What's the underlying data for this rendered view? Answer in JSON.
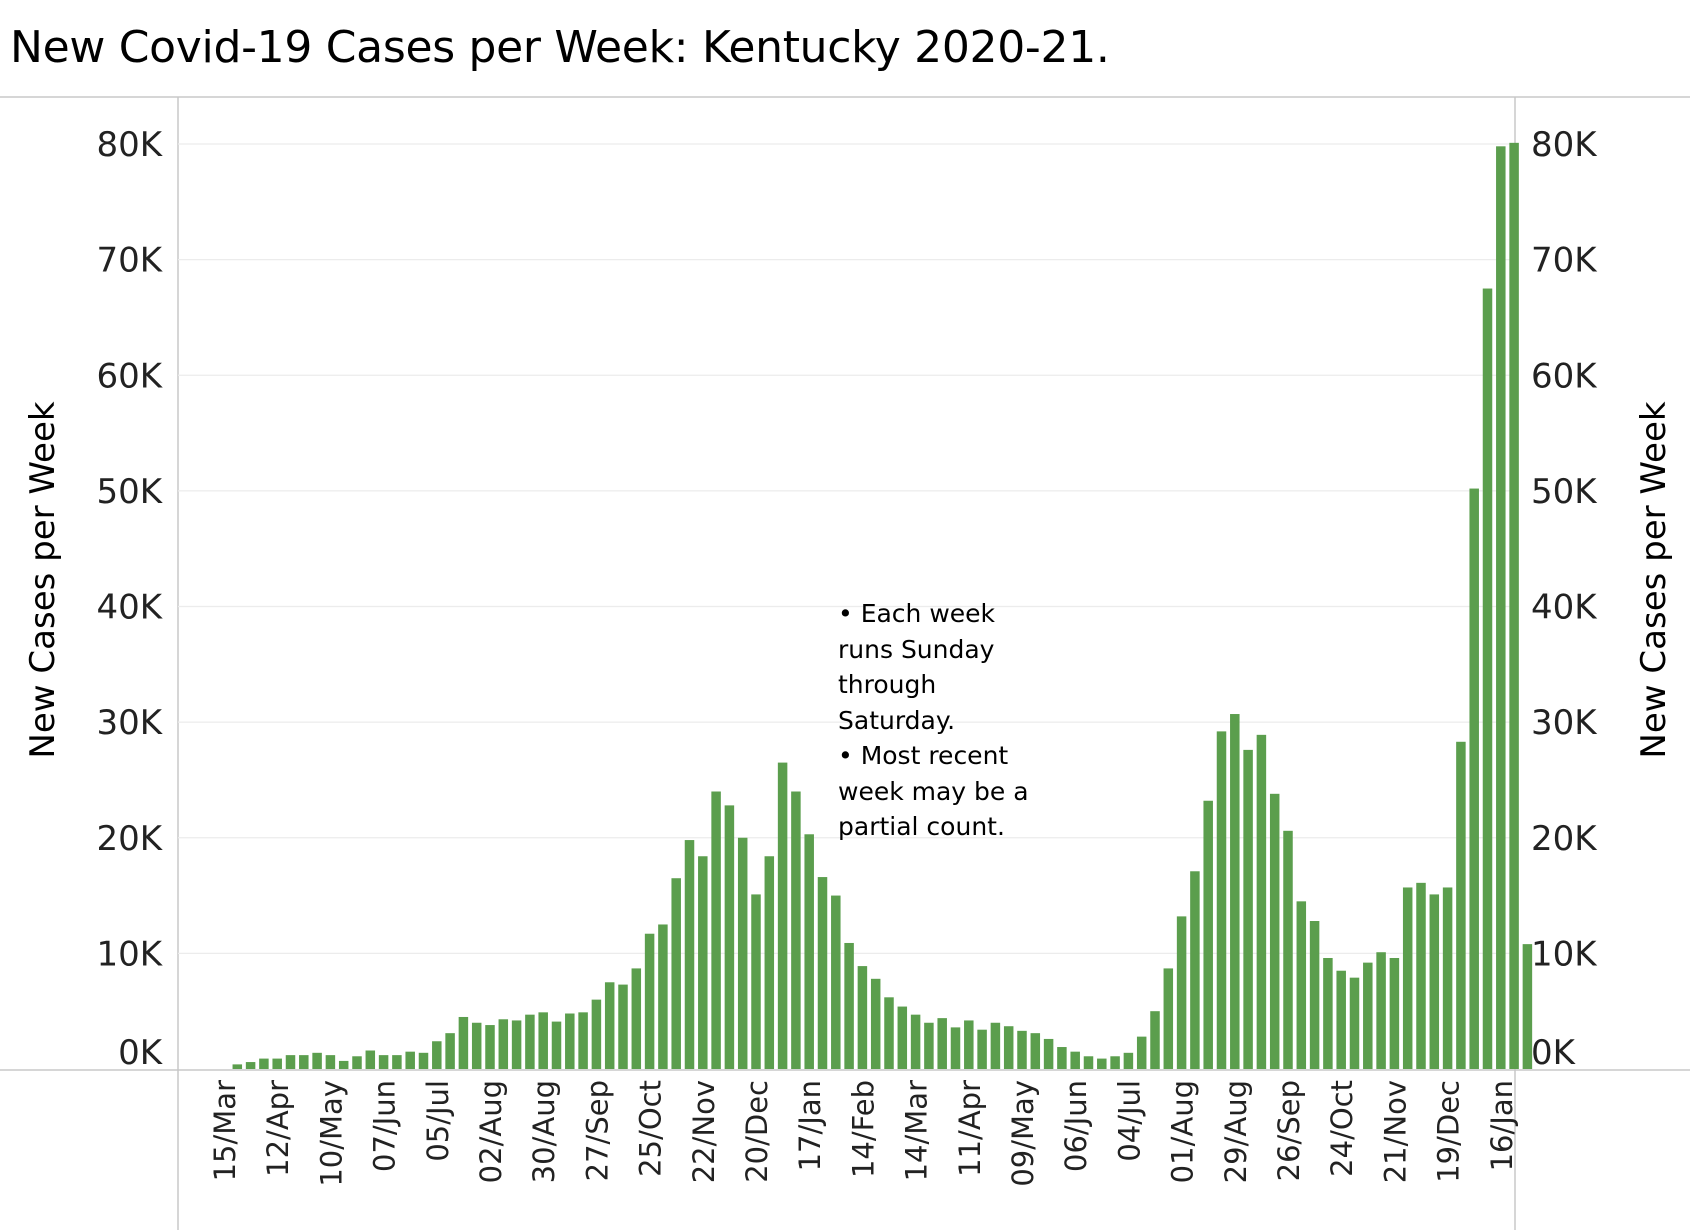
{
  "chart_data": {
    "type": "bar",
    "title": "New Covid-19 Cases per Week:  Kentucky 2020-21.",
    "ylabel": "New Cases per Week",
    "ylabel_right": "New Cases per Week",
    "ylim": [
      0,
      80000
    ],
    "yticks": [
      {
        "value": 0,
        "label": "0K"
      },
      {
        "value": 10000,
        "label": "10K"
      },
      {
        "value": 20000,
        "label": "20K"
      },
      {
        "value": 30000,
        "label": "30K"
      },
      {
        "value": 40000,
        "label": "40K"
      },
      {
        "value": 50000,
        "label": "50K"
      },
      {
        "value": 60000,
        "label": "60K"
      },
      {
        "value": 70000,
        "label": "70K"
      },
      {
        "value": 80000,
        "label": "80K"
      }
    ],
    "bar_color": "#5b9e4d",
    "grid": true,
    "tick_labels": [
      "15/Mar",
      "12/Apr",
      "10/May",
      "07/Jun",
      "05/Jul",
      "02/Aug",
      "30/Aug",
      "27/Sep",
      "25/Oct",
      "22/Nov",
      "20/Dec",
      "17/Jan",
      "14/Feb",
      "14/Mar",
      "11/Apr",
      "09/May",
      "06/Jun",
      "04/Jul",
      "01/Aug",
      "29/Aug",
      "26/Sep",
      "24/Oct",
      "21/Nov",
      "19/Dec",
      "16/Jan"
    ],
    "tick_every": 4,
    "annotation": "• Each week\nruns Sunday\nthrough\nSaturday.\n• Most recent\nweek may be a\npartial count.",
    "values": [
      0,
      400,
      600,
      900,
      900,
      1200,
      1200,
      1400,
      1200,
      700,
      1100,
      1600,
      1200,
      1200,
      1500,
      1400,
      2400,
      3100,
      4500,
      4000,
      3800,
      4300,
      4200,
      4700,
      4900,
      4100,
      4800,
      4900,
      6000,
      7500,
      7300,
      8700,
      11700,
      12500,
      16500,
      19800,
      18400,
      24000,
      22800,
      20000,
      15100,
      18400,
      26500,
      24000,
      20300,
      16600,
      15000,
      10900,
      8900,
      7800,
      6200,
      5400,
      4700,
      4000,
      4400,
      3600,
      4200,
      3400,
      4000,
      3700,
      3300,
      3100,
      2600,
      1900,
      1500,
      1100,
      900,
      1100,
      1400,
      2800,
      5000,
      8700,
      13200,
      17100,
      23200,
      29200,
      30700,
      27600,
      28900,
      23800,
      20600,
      14500,
      12800,
      9600,
      8500,
      7900,
      9200,
      10100,
      9600,
      15700,
      16100,
      15100,
      15700,
      28300,
      50200,
      67500,
      79800,
      80100,
      10800
    ]
  }
}
